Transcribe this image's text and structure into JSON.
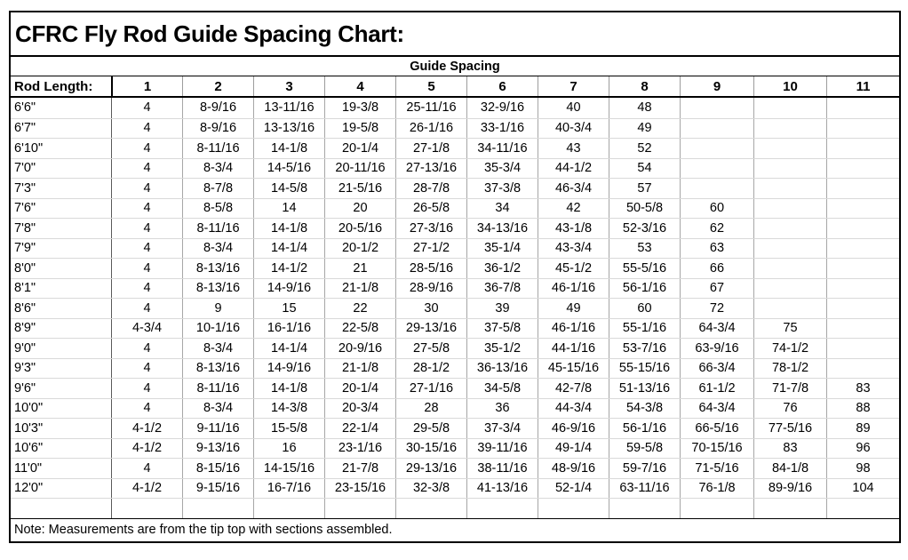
{
  "title": "CFRC Fly Rod Guide Spacing Chart:",
  "note": "Note: Measurements are from the tip top with sections assembled.",
  "chart_data": {
    "type": "table",
    "title": "CFRC Fly Rod Guide Spacing Chart:",
    "group_header": "Guide Spacing",
    "row_header_label": "Rod Length:",
    "columns": [
      "1",
      "2",
      "3",
      "4",
      "5",
      "6",
      "7",
      "8",
      "9",
      "10",
      "11"
    ],
    "rows": [
      {
        "length": "6'6\"",
        "values": [
          "4",
          "8-9/16",
          "13-11/16",
          "19-3/8",
          "25-11/16",
          "32-9/16",
          "40",
          "48",
          "",
          "",
          ""
        ]
      },
      {
        "length": "6'7\"",
        "values": [
          "4",
          "8-9/16",
          "13-13/16",
          "19-5/8",
          "26-1/16",
          "33-1/16",
          "40-3/4",
          "49",
          "",
          "",
          ""
        ]
      },
      {
        "length": "6'10\"",
        "values": [
          "4",
          "8-11/16",
          "14-1/8",
          "20-1/4",
          "27-1/8",
          "34-11/16",
          "43",
          "52",
          "",
          "",
          ""
        ]
      },
      {
        "length": "7'0\"",
        "values": [
          "4",
          "8-3/4",
          "14-5/16",
          "20-11/16",
          "27-13/16",
          "35-3/4",
          "44-1/2",
          "54",
          "",
          "",
          ""
        ]
      },
      {
        "length": "7'3\"",
        "values": [
          "4",
          "8-7/8",
          "14-5/8",
          "21-5/16",
          "28-7/8",
          "37-3/8",
          "46-3/4",
          "57",
          "",
          "",
          ""
        ]
      },
      {
        "length": "7'6\"",
        "values": [
          "4",
          "8-5/8",
          "14",
          "20",
          "26-5/8",
          "34",
          "42",
          "50-5/8",
          "60",
          "",
          ""
        ]
      },
      {
        "length": "7'8\"",
        "values": [
          "4",
          "8-11/16",
          "14-1/8",
          "20-5/16",
          "27-3/16",
          "34-13/16",
          "43-1/8",
          "52-3/16",
          "62",
          "",
          ""
        ]
      },
      {
        "length": "7'9\"",
        "values": [
          "4",
          "8-3/4",
          "14-1/4",
          "20-1/2",
          "27-1/2",
          "35-1/4",
          "43-3/4",
          "53",
          "63",
          "",
          ""
        ]
      },
      {
        "length": "8'0\"",
        "values": [
          "4",
          "8-13/16",
          "14-1/2",
          "21",
          "28-5/16",
          "36-1/2",
          "45-1/2",
          "55-5/16",
          "66",
          "",
          ""
        ]
      },
      {
        "length": "8'1\"",
        "values": [
          "4",
          "8-13/16",
          "14-9/16",
          "21-1/8",
          "28-9/16",
          "36-7/8",
          "46-1/16",
          "56-1/16",
          "67",
          "",
          ""
        ]
      },
      {
        "length": "8'6\"",
        "values": [
          "4",
          "9",
          "15",
          "22",
          "30",
          "39",
          "49",
          "60",
          "72",
          "",
          ""
        ]
      },
      {
        "length": "8'9\"",
        "values": [
          "4-3/4",
          "10-1/16",
          "16-1/16",
          "22-5/8",
          "29-13/16",
          "37-5/8",
          "46-1/16",
          "55-1/16",
          "64-3/4",
          "75",
          ""
        ]
      },
      {
        "length": "9'0\"",
        "values": [
          "4",
          "8-3/4",
          "14-1/4",
          "20-9/16",
          "27-5/8",
          "35-1/2",
          "44-1/16",
          "53-7/16",
          "63-9/16",
          "74-1/2",
          ""
        ]
      },
      {
        "length": "9'3\"",
        "values": [
          "4",
          "8-13/16",
          "14-9/16",
          "21-1/8",
          "28-1/2",
          "36-13/16",
          "45-15/16",
          "55-15/16",
          "66-3/4",
          "78-1/2",
          ""
        ]
      },
      {
        "length": "9'6\"",
        "values": [
          "4",
          "8-11/16",
          "14-1/8",
          "20-1/4",
          "27-1/16",
          "34-5/8",
          "42-7/8",
          "51-13/16",
          "61-1/2",
          "71-7/8",
          "83"
        ]
      },
      {
        "length": "10'0\"",
        "values": [
          "4",
          "8-3/4",
          "14-3/8",
          "20-3/4",
          "28",
          "36",
          "44-3/4",
          "54-3/8",
          "64-3/4",
          "76",
          "88"
        ]
      },
      {
        "length": "10'3\"",
        "values": [
          "4-1/2",
          "9-11/16",
          "15-5/8",
          "22-1/4",
          "29-5/8",
          "37-3/4",
          "46-9/16",
          "56-1/16",
          "66-5/16",
          "77-5/16",
          "89"
        ]
      },
      {
        "length": "10'6\"",
        "values": [
          "4-1/2",
          "9-13/16",
          "16",
          "23-1/16",
          "30-15/16",
          "39-11/16",
          "49-1/4",
          "59-5/8",
          "70-15/16",
          "83",
          "96"
        ]
      },
      {
        "length": "11'0\"",
        "values": [
          "4",
          "8-15/16",
          "14-15/16",
          "21-7/8",
          "29-13/16",
          "38-11/16",
          "48-9/16",
          "59-7/16",
          "71-5/16",
          "84-1/8",
          "98"
        ]
      },
      {
        "length": "12'0\"",
        "values": [
          "4-1/2",
          "9-15/16",
          "16-7/16",
          "23-15/16",
          "32-3/8",
          "41-13/16",
          "52-1/4",
          "63-11/16",
          "76-1/8",
          "89-9/16",
          "104"
        ]
      },
      {
        "length": "",
        "values": [
          "",
          "",
          "",
          "",
          "",
          "",
          "",
          "",
          "",
          "",
          ""
        ]
      }
    ]
  }
}
